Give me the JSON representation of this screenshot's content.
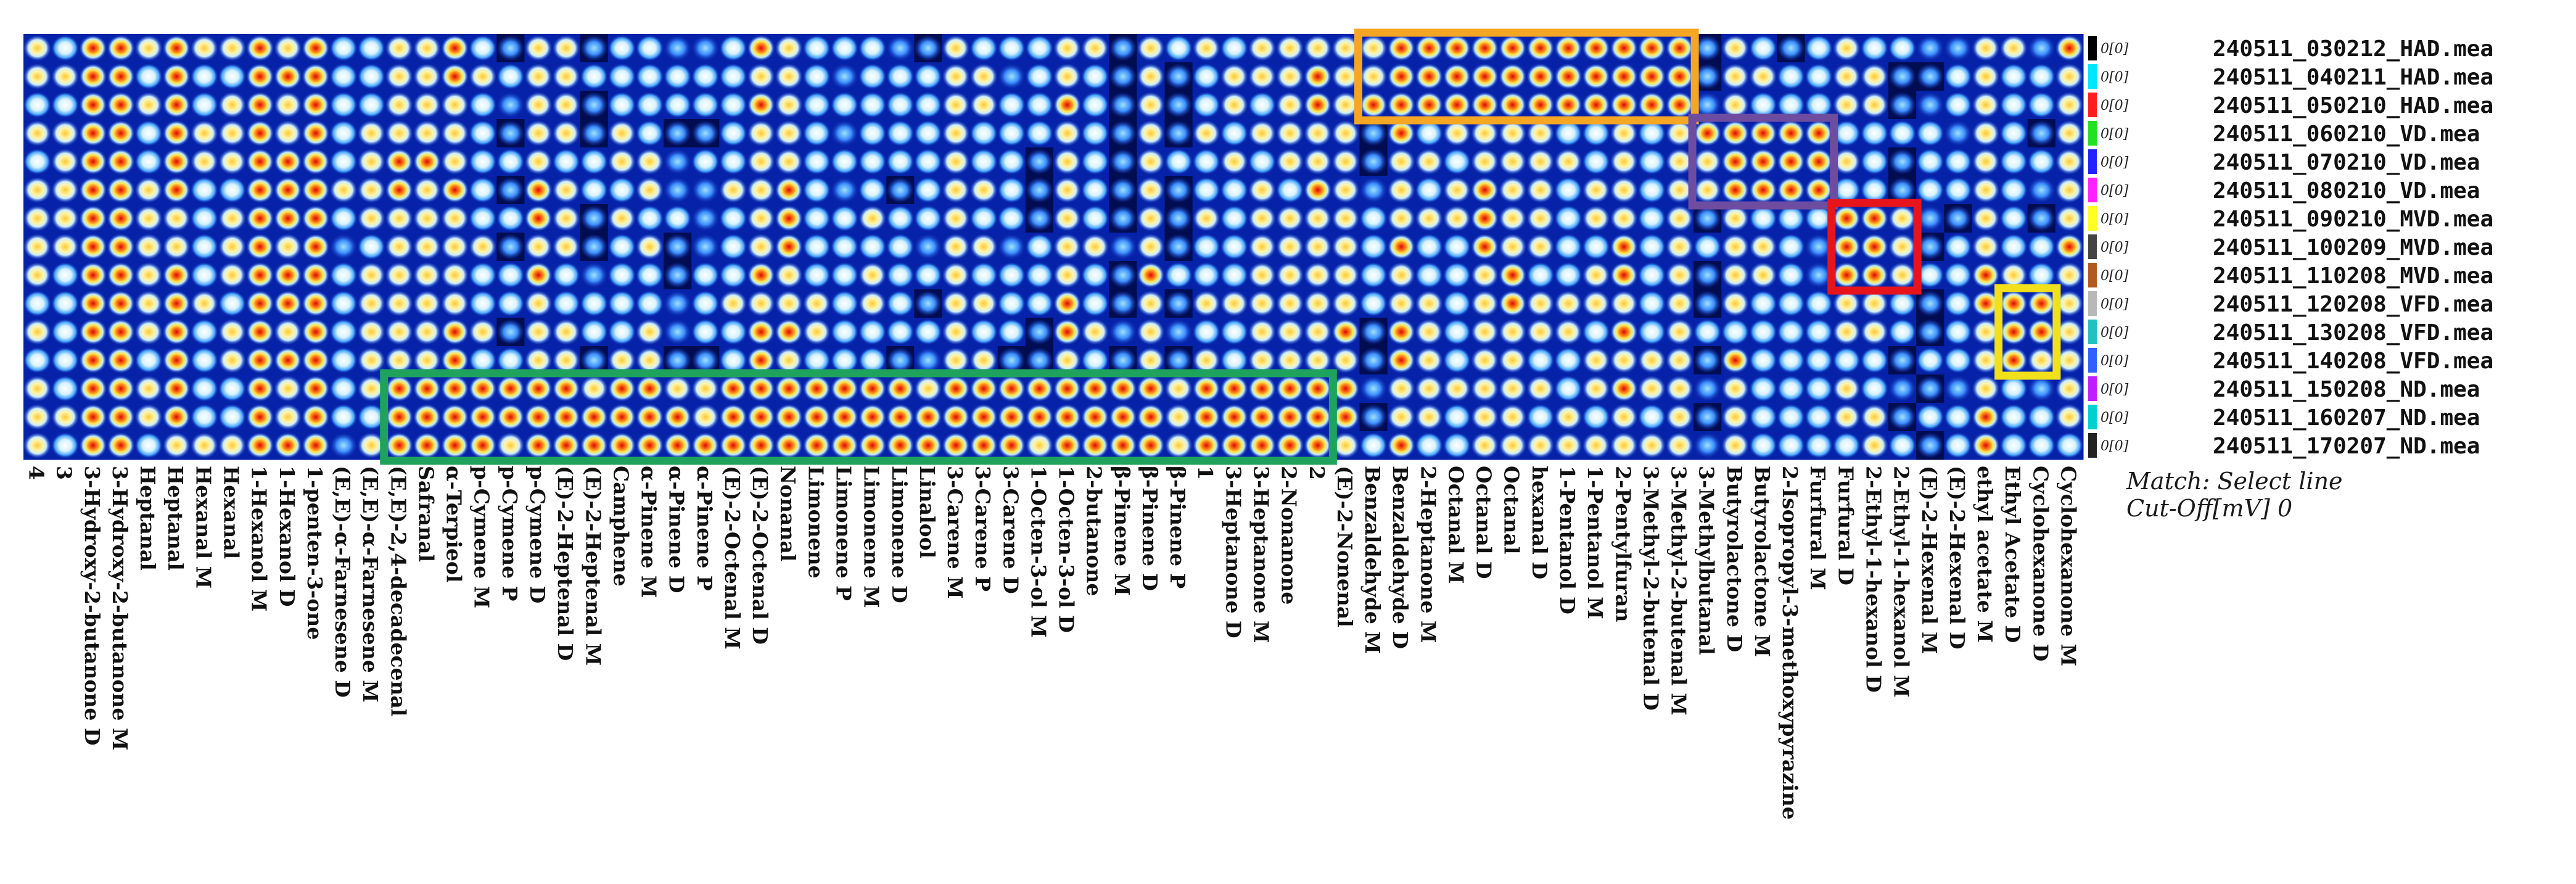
{
  "chart_data": {
    "type": "heatmap",
    "title": "",
    "xlabel": "",
    "ylabel": "",
    "columns": [
      "4",
      "3",
      "3-Hydroxy-2-butanone D",
      "3-Hydroxy-2-butanone M",
      "Heptanal",
      "Heptanal",
      "Hexanal M",
      "Hexanal",
      "1-Hexanol M",
      "1-Hexanol D",
      "1-penten-3-one",
      "(E,E)-α-Farnesene D",
      "(E,E)-α-Farnesene M",
      "(E,E)-2,4-decadecenal",
      "Safranal",
      "α-Terpieol",
      "p-Cymene M",
      "p-Cymene P",
      "p-Cymene D",
      "(E)-2-Heptenal D",
      "(E)-2-Heptenal M",
      "Camphene",
      "α-Pinene M",
      "α-Pinene D",
      "α-Pinene P",
      "(E)-2-Octenal M",
      "(E)-2-Octenal D",
      "Nonanal",
      "Limonene",
      "Limonene P",
      "Limonene M",
      "Limonene D",
      "Linalool",
      "3-Carene M",
      "3-Carene P",
      "3-Carene D",
      "1-Octen-3-ol M",
      "1-Octen-3-ol D",
      "2-butanone",
      "β-Pinene M",
      "β-Pinene D",
      "β-Pinene P",
      "1",
      "3-Heptanone D",
      "3-Heptanone M",
      "2-Nonanone",
      "2",
      "(E)-2-Nonenal",
      "Benzaldehyde M",
      "Benzaldehyde D",
      "2-Heptanone M",
      "Octanal M",
      "Octanal D",
      "Octanal",
      "hexanal D",
      "1-Pentanol D",
      "1-Pentanol M",
      "2-Pentylfuran",
      "3-Methyl-2-butenal D",
      "3-Methyl-2-butenal M",
      "3-Methylbutanal",
      "Butyrolactone D",
      "Butyrolactone M",
      "2-Isopropyl-3-methoxypyrazine",
      "Furfural M",
      "Furfural D",
      "2-Ethyl-1-hexanol D",
      "2-Ethyl-1-hexanol M",
      "(E)-2-Hexenal M",
      "(E)-2-Hexenal D",
      "ethyl acetate M",
      "Ethyl Acetate D",
      "Cyclohexanone D",
      "Cyclohexanone M"
    ],
    "rows": [
      "240511_030212_HAD.mea",
      "240511_040211_HAD.mea",
      "240511_050210_HAD.mea",
      "240511_060210_VD.mea",
      "240511_070210_VD.mea",
      "240511_080210_VD.mea",
      "240511_090210_MVD.mea",
      "240511_100209_MVD.mea",
      "240511_110208_MVD.mea",
      "240511_120208_VFD.mea",
      "240511_130208_VFD.mea",
      "240511_140208_VFD.mea",
      "240511_150208_ND.mea",
      "240511_160207_ND.mea",
      "240511_170207_ND.mea"
    ],
    "row_scale_label": "0[0]",
    "row_marker_colors": [
      "#000000",
      "#00e6ff",
      "#ff1f1f",
      "#22e022",
      "#2222ff",
      "#ff22ff",
      "#ffff22",
      "#444444",
      "#b05a20",
      "#b8b8b8",
      "#22c0c0",
      "#3060ff",
      "#c020ff",
      "#00d0d0",
      "#222222"
    ],
    "highlight_boxes": [
      {
        "rows": [
          "240511_030212_HAD.mea",
          "240511_050210_HAD.mea"
        ],
        "columns": [
          "Benzaldehyde M",
          "3-Methyl-2-butenal M"
        ],
        "color": "#f5a623"
      },
      {
        "rows": [
          "240511_060210_VD.mea",
          "240511_080210_VD.mea"
        ],
        "columns": [
          "3-Methylbutanal",
          "Furfural M"
        ],
        "color": "#6e4da0"
      },
      {
        "rows": [
          "240511_090210_MVD.mea",
          "240511_110208_MVD.mea"
        ],
        "columns": [
          "Furfural D",
          "2-Ethyl-1-hexanol M"
        ],
        "color": "#e8141c"
      },
      {
        "rows": [
          "240511_120208_VFD.mea",
          "240511_140208_VFD.mea"
        ],
        "columns": [
          "Ethyl Acetate D",
          "Cyclohexanone D"
        ],
        "color": "#f2e01a"
      },
      {
        "rows": [
          "240511_150208_ND.mea",
          "240511_170207_ND.mea"
        ],
        "columns": [
          "(E,E)-2,4-decadecenal",
          "2"
        ],
        "color": "#1fa35c"
      }
    ],
    "color_scale": [
      "#000010",
      "#0018c8",
      "#1e78ff",
      "#8ed6ff",
      "#ffffff",
      "#ffe24a",
      "#ff8a1a",
      "#e81010"
    ]
  },
  "info": {
    "match_line": "Match: Select line",
    "cutoff_line": "Cut-Off[mV] 0"
  }
}
